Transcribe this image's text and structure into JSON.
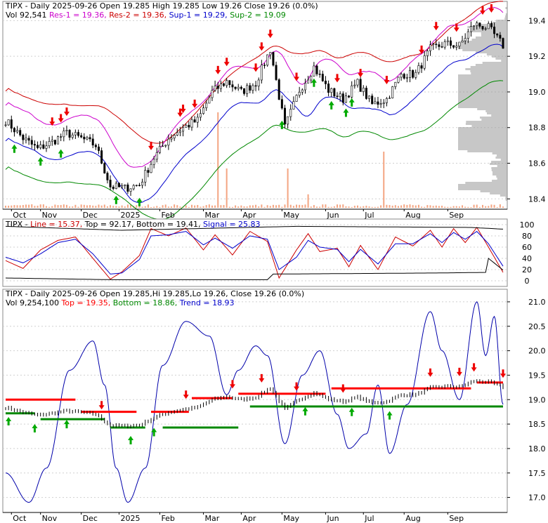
{
  "chart_data": [
    {
      "type": "candlestick",
      "panel": "price",
      "title_parts": {
        "ticker": "TIPX",
        "text": " - Daily 2025-09-26 Open 19.285  High 19.285  Low 19.26  Close 19.26 (0.0%)"
      },
      "legend": {
        "vol": "Vol 92,541",
        "res1": "Res-1 = 19.36,",
        "res2": "Res-2 = 19.36,",
        "sup1": "Sup-1 = 19.29,",
        "sup2": "Sup-2 = 19.09"
      },
      "ylim": [
        18.35,
        19.5
      ],
      "yticks": [
        18.4,
        18.6,
        18.8,
        19.0,
        19.2,
        19.4
      ],
      "ytick_labels": [
        "18.4",
        "18.6",
        "18.8",
        "19.0",
        "19.2",
        "19.4"
      ],
      "close_anchors": [
        [
          0,
          18.84
        ],
        [
          6,
          18.74
        ],
        [
          11,
          18.68
        ],
        [
          16,
          18.72
        ],
        [
          21,
          18.77
        ],
        [
          26,
          18.74
        ],
        [
          31,
          18.7
        ],
        [
          36,
          18.47
        ],
        [
          41,
          18.46
        ],
        [
          46,
          18.48
        ],
        [
          51,
          18.63
        ],
        [
          56,
          18.74
        ],
        [
          61,
          18.8
        ],
        [
          66,
          18.84
        ],
        [
          71,
          19.0
        ],
        [
          76,
          19.06
        ],
        [
          81,
          19.0
        ],
        [
          86,
          19.05
        ],
        [
          91,
          19.24
        ],
        [
          96,
          18.8
        ],
        [
          101,
          19.01
        ],
        [
          106,
          19.14
        ],
        [
          111,
          19.01
        ],
        [
          116,
          18.96
        ],
        [
          121,
          19.05
        ],
        [
          126,
          18.93
        ],
        [
          131,
          18.96
        ],
        [
          136,
          19.1
        ],
        [
          141,
          19.1
        ],
        [
          146,
          19.24
        ],
        [
          151,
          19.27
        ],
        [
          156,
          19.26
        ],
        [
          161,
          19.38
        ],
        [
          166,
          19.36
        ],
        [
          171,
          19.26
        ]
      ],
      "volume_spikes": [
        [
          73,
          0.85
        ],
        [
          76,
          0.35
        ],
        [
          97,
          0.35
        ],
        [
          104,
          0.12
        ],
        [
          130,
          0.5
        ]
      ]
    },
    {
      "type": "line",
      "panel": "stochastic",
      "title_parts": {
        "ticker": "TIPX",
        "line": "Line = 15.37,",
        "top": "Top = 92.17,",
        "bottom": "Bottom = 19.41,",
        "signal": "Signal = 25.83"
      },
      "ylim": [
        -5,
        105
      ],
      "yticks": [
        0,
        20,
        40,
        60,
        80,
        100
      ],
      "ytick_labels": [
        "0",
        "20",
        "40",
        "60",
        "80",
        "100"
      ],
      "series": [
        {
          "role": "line",
          "values": [
            [
              0,
              36
            ],
            [
              6,
              22
            ],
            [
              12,
              55
            ],
            [
              18,
              72
            ],
            [
              24,
              78
            ],
            [
              30,
              40
            ],
            [
              36,
              3
            ],
            [
              40,
              16
            ],
            [
              46,
              45
            ],
            [
              50,
              93
            ],
            [
              56,
              80
            ],
            [
              62,
              94
            ],
            [
              68,
              55
            ],
            [
              72,
              82
            ],
            [
              78,
              46
            ],
            [
              84,
              88
            ],
            [
              90,
              70
            ],
            [
              94,
              5
            ],
            [
              100,
              55
            ],
            [
              104,
              84
            ],
            [
              108,
              52
            ],
            [
              114,
              58
            ],
            [
              118,
              25
            ],
            [
              122,
              63
            ],
            [
              128,
              20
            ],
            [
              134,
              78
            ],
            [
              140,
              62
            ],
            [
              146,
              90
            ],
            [
              150,
              60
            ],
            [
              154,
              93
            ],
            [
              158,
              68
            ],
            [
              162,
              95
            ],
            [
              166,
              60
            ],
            [
              171,
              15
            ]
          ]
        },
        {
          "role": "signal",
          "values": [
            [
              0,
              42
            ],
            [
              6,
              32
            ],
            [
              12,
              48
            ],
            [
              18,
              68
            ],
            [
              24,
              74
            ],
            [
              30,
              48
            ],
            [
              36,
              12
            ],
            [
              40,
              14
            ],
            [
              46,
              38
            ],
            [
              50,
              80
            ],
            [
              56,
              82
            ],
            [
              62,
              88
            ],
            [
              68,
              64
            ],
            [
              72,
              76
            ],
            [
              78,
              58
            ],
            [
              84,
              80
            ],
            [
              90,
              74
            ],
            [
              94,
              20
            ],
            [
              100,
              42
            ],
            [
              104,
              72
            ],
            [
              108,
              60
            ],
            [
              114,
              56
            ],
            [
              118,
              34
            ],
            [
              122,
              56
            ],
            [
              128,
              30
            ],
            [
              134,
              66
            ],
            [
              140,
              66
            ],
            [
              146,
              84
            ],
            [
              150,
              68
            ],
            [
              154,
              86
            ],
            [
              158,
              74
            ],
            [
              162,
              88
            ],
            [
              166,
              66
            ],
            [
              171,
              26
            ]
          ]
        },
        {
          "role": "top",
          "values": [
            [
              0,
              97
            ],
            [
              40,
              90
            ],
            [
              100,
              97
            ],
            [
              160,
              95
            ],
            [
              171,
              92
            ]
          ]
        },
        {
          "role": "bottom",
          "values": [
            [
              0,
              5
            ],
            [
              36,
              2
            ],
            [
              90,
              2
            ],
            [
              92,
              12
            ],
            [
              150,
              14
            ],
            [
              165,
              15
            ],
            [
              166,
              40
            ],
            [
              171,
              19
            ]
          ]
        }
      ]
    },
    {
      "type": "candlestick",
      "panel": "trend",
      "title_parts": {
        "ticker": "TIPX",
        "text": " - Daily 2025-09-26 Open 19.285,Hi 19.285,Lo 19.26,  Close 19.26 (0.0%)"
      },
      "legend": {
        "vol": "Vol 9,254,100",
        "top": "Top = 19.35,",
        "bottom": "Bottom = 18.86,",
        "trend": "Trend = 18.93"
      },
      "ylim": [
        16.75,
        21.2
      ],
      "yticks": [
        17.0,
        17.5,
        18.0,
        18.5,
        19.0,
        19.5,
        20.0,
        20.5,
        21.0
      ],
      "ytick_labels": [
        "17.0",
        "17.5",
        "18.0",
        "18.5",
        "19.0",
        "19.5",
        "20.0",
        "20.5",
        "21.0"
      ],
      "oscillator": [
        [
          0,
          17.5
        ],
        [
          8,
          16.9
        ],
        [
          14,
          17.6
        ],
        [
          22,
          19.6
        ],
        [
          30,
          20.2
        ],
        [
          34,
          19.3
        ],
        [
          38,
          17.6
        ],
        [
          42,
          16.9
        ],
        [
          48,
          17.6
        ],
        [
          54,
          19.7
        ],
        [
          62,
          20.6
        ],
        [
          70,
          20.3
        ],
        [
          76,
          19.1
        ],
        [
          80,
          19.6
        ],
        [
          86,
          20.1
        ],
        [
          90,
          19.9
        ],
        [
          96,
          18.1
        ],
        [
          102,
          19.5
        ],
        [
          108,
          20.0
        ],
        [
          114,
          18.7
        ],
        [
          118,
          18.0
        ],
        [
          124,
          18.3
        ],
        [
          128,
          19.3
        ],
        [
          132,
          17.9
        ],
        [
          138,
          18.9
        ],
        [
          146,
          20.8
        ],
        [
          150,
          20.0
        ],
        [
          156,
          19.0
        ],
        [
          162,
          21.0
        ],
        [
          165,
          19.9
        ],
        [
          168,
          20.7
        ],
        [
          171,
          18.9
        ]
      ],
      "top_segments": [
        [
          0,
          24,
          19.0
        ],
        [
          26,
          45,
          18.75
        ],
        [
          50,
          63,
          18.75
        ],
        [
          64,
          78,
          19.03
        ],
        [
          80,
          110,
          19.12
        ],
        [
          112,
          160,
          19.23
        ],
        [
          162,
          171,
          19.35
        ]
      ],
      "bottom_segments": [
        [
          0,
          10,
          18.72
        ],
        [
          12,
          34,
          18.6
        ],
        [
          36,
          48,
          18.43
        ],
        [
          54,
          80,
          18.43
        ],
        [
          84,
          171,
          18.86
        ]
      ]
    }
  ],
  "x_axis": {
    "labels": [
      [
        "Oct",
        2
      ],
      [
        "Nov",
        12
      ],
      [
        "Dec",
        26
      ],
      [
        "2025",
        39
      ],
      [
        "Feb",
        53
      ],
      [
        "Mar",
        68
      ],
      [
        "Apr",
        81
      ],
      [
        "May",
        95
      ],
      [
        "Jun",
        110
      ],
      [
        "Jul",
        123
      ],
      [
        "Aug",
        137
      ],
      [
        "Sep",
        152
      ]
    ]
  },
  "colors": {
    "background": "#ffffff",
    "grid": "#d0d0d0",
    "candle": "#000000",
    "res1": "#cc00cc",
    "res2": "#cc0000",
    "sup1": "#0000cc",
    "sup2": "#008800",
    "volume": "#f4a582",
    "profile": "#999999",
    "stoch_line": "#cc0000",
    "stoch_signal": "#0000cc",
    "stoch_band": "#000000",
    "oscillator": "#0000aa",
    "trend_top": "#ff0000",
    "trend_bottom": "#008800",
    "arrow_up": "#00aa00",
    "arrow_down": "#ee0000"
  }
}
